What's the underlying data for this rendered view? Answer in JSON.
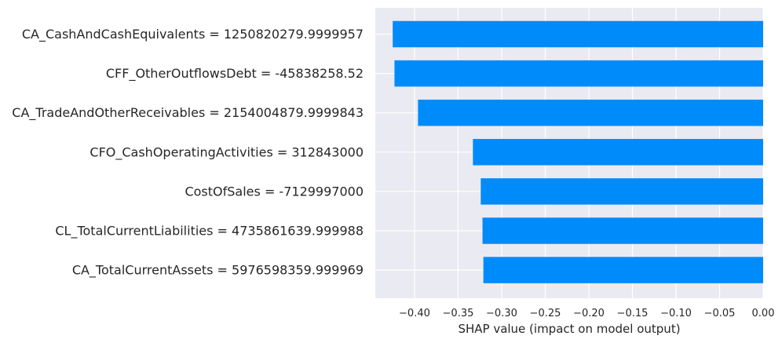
{
  "chart_data": {
    "type": "bar",
    "orientation": "horizontal",
    "categories": [
      "CA_CashAndCashEquivalents = 1250820279.9999957",
      "CFF_OtherOutflowsDebt = -45838258.52",
      "CA_TradeAndOtherReceivables = 2154004879.9999843",
      "CFO_CashOperatingActivities = 312843000",
      "CostOfSales = -7129997000",
      "CL_TotalCurrentLiabilities = 4735861639.999988",
      "CA_TotalCurrentAssets = 5976598359.999969"
    ],
    "values": [
      -0.425,
      -0.423,
      -0.396,
      -0.333,
      -0.324,
      -0.322,
      -0.321
    ],
    "title": "",
    "xlabel": "SHAP value (impact on model output)",
    "ylabel": "",
    "xlim": [
      -0.445,
      0.0
    ],
    "xticks": [
      -0.4,
      -0.35,
      -0.3,
      -0.25,
      -0.2,
      -0.15,
      -0.1,
      -0.05,
      0.0
    ],
    "xtick_labels": [
      "−0.40",
      "−0.35",
      "−0.30",
      "−0.25",
      "−0.20",
      "−0.15",
      "−0.10",
      "−0.05",
      "0.00"
    ],
    "grid": true,
    "legend": "none",
    "colors": {
      "bar": "#008bfb",
      "plot_background": "#eaeaf2",
      "grid": "#ffffff",
      "text": "#262626"
    }
  }
}
